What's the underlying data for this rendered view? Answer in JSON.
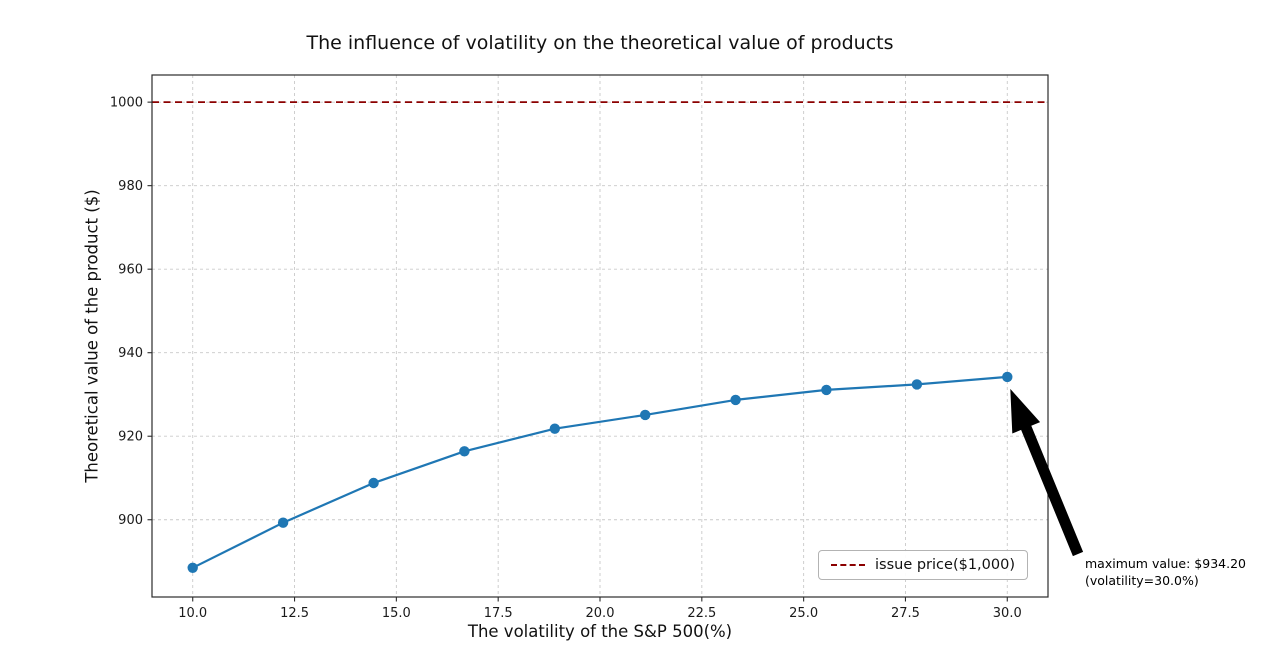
{
  "chart_data": {
    "type": "line",
    "title": "The influence of volatility on the theoretical value of products",
    "xlabel": "The volatility of the S&P 500(%)",
    "ylabel": "Theoretical value of the product ($)",
    "x": [
      10.0,
      12.22,
      14.44,
      16.67,
      18.89,
      21.11,
      23.33,
      25.56,
      27.78,
      30.0
    ],
    "y": [
      888.5,
      899.3,
      908.8,
      916.4,
      921.8,
      925.1,
      928.7,
      931.1,
      932.4,
      934.2
    ],
    "xlim": [
      9.0,
      31.0
    ],
    "ylim": [
      881.5,
      1006.5
    ],
    "xticks": [
      10,
      12.5,
      15,
      17.5,
      20,
      22.5,
      25,
      27.5,
      30
    ],
    "xtick_labels": [
      "10.0",
      "12.5",
      "15.0",
      "17.5",
      "20.0",
      "22.5",
      "25.0",
      "27.5",
      "30.0"
    ],
    "yticks": [
      900,
      920,
      940,
      960,
      980,
      1000
    ],
    "ytick_labels": [
      "900",
      "920",
      "940",
      "960",
      "980",
      "1000"
    ],
    "grid": true,
    "grid_color": "#c9c9c9",
    "line_color": "#1f77b4",
    "marker": "circle",
    "issue_price": 1000,
    "issue_price_color": "#8b0000",
    "legend": {
      "label": "issue price($1,000)",
      "position": "lower right",
      "style": "dashed"
    },
    "annotation": {
      "line1": "maximum value: $934.20",
      "line2": "(volatility=30.0%)",
      "target_x": 30.0,
      "target_y": 934.2,
      "arrow_color": "#000000"
    }
  }
}
